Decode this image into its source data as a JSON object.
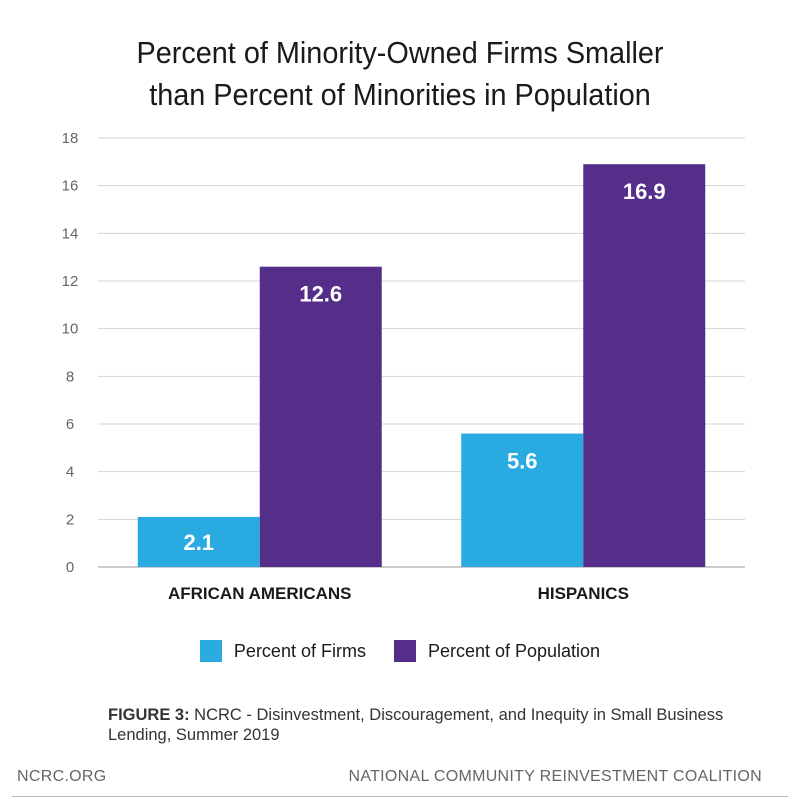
{
  "title_lines": [
    "Percent of Minority-Owned Firms Smaller",
    "than Percent of Minorities in Population"
  ],
  "chart_data": {
    "type": "bar",
    "categories": [
      "AFRICAN AMERICANS",
      "HISPANICS"
    ],
    "series": [
      {
        "name": "Percent of Firms",
        "values": [
          2.1,
          5.6
        ],
        "color": "#29ABE2"
      },
      {
        "name": "Percent of Population",
        "values": [
          12.6,
          16.9
        ],
        "color": "#542E88"
      }
    ],
    "ylim": [
      0,
      18
    ],
    "yticks": [
      0,
      2,
      4,
      6,
      8,
      10,
      12,
      14,
      16,
      18
    ],
    "grid": true,
    "legend_position": "bottom",
    "data_labels": true
  },
  "legend": [
    {
      "label": "Percent of Firms",
      "color": "#29ABE2"
    },
    {
      "label": "Percent of Population",
      "color": "#542E88"
    }
  ],
  "caption": {
    "bold": "FIGURE 3:",
    "text": " NCRC - Disinvestment, Discouragement, and Inequity in Small Business Lending, Summer 2019"
  },
  "footer": {
    "left": "NCRC.ORG",
    "right": "NATIONAL COMMUNITY REINVESTMENT COALITION"
  }
}
